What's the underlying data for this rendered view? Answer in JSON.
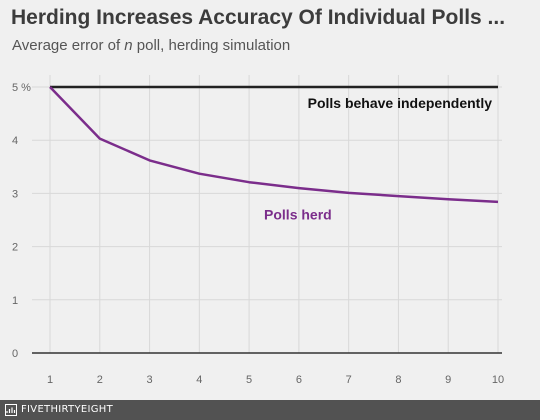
{
  "chart_data": {
    "type": "line",
    "title": "Herding Increases Accuracy Of Individual Polls ...",
    "subtitle_prefix": "Average error of ",
    "subtitle_var": "n",
    "subtitle_suffix": " poll, herding simulation",
    "xlabel": "",
    "ylabel": "",
    "x": [
      1,
      2,
      3,
      4,
      5,
      6,
      7,
      8,
      9,
      10
    ],
    "xlim": [
      1,
      10
    ],
    "ylim": [
      0,
      5
    ],
    "y_ticks": [
      0,
      1,
      2,
      3,
      4,
      5
    ],
    "y_tick_labels": [
      "0",
      "1",
      "2",
      "3",
      "4",
      "5 %"
    ],
    "x_tick_labels": [
      "1",
      "2",
      "3",
      "4",
      "5",
      "6",
      "7",
      "8",
      "9",
      "10"
    ],
    "grid": true,
    "series": [
      {
        "name": "Polls behave independently",
        "color": "#222222",
        "values": [
          5,
          5,
          5,
          5,
          5,
          5,
          5,
          5,
          5,
          5
        ]
      },
      {
        "name": "Polls herd",
        "color": "#7b2d8b",
        "values": [
          5.0,
          4.03,
          3.62,
          3.37,
          3.21,
          3.1,
          3.01,
          2.95,
          2.89,
          2.84
        ]
      }
    ]
  },
  "footer": {
    "brand": "FIVETHIRTYEIGHT",
    "logo_icon": "fivethirtyeight-logo-icon"
  }
}
